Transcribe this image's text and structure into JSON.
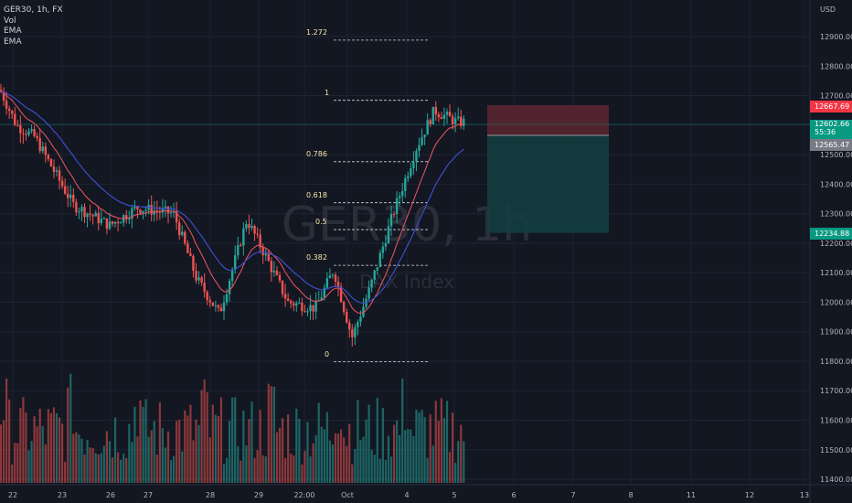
{
  "legend": {
    "symbol": "GER30, 1h, FX",
    "indicators": [
      "Vol",
      "EMA",
      "EMA"
    ]
  },
  "watermark": {
    "symbol": "GER30, 1h",
    "description": "DAX Index"
  },
  "price_axis": {
    "currency": "USD",
    "ticks": [
      "12900.00",
      "12800.00",
      "12700.00",
      "12600.00",
      "12500.00",
      "12400.00",
      "12300.00",
      "12200.00",
      "12100.00",
      "12000.00",
      "11900.00",
      "11800.00",
      "11700.00",
      "11600.00",
      "11500.00",
      "11400.00"
    ]
  },
  "price_labels": {
    "stop_loss": "12667.69",
    "current_price": "12602.66",
    "countdown": "55:36",
    "entry": "12565.47",
    "take_profit": "12234.88"
  },
  "time_axis": {
    "ticks": [
      "22",
      "23",
      "26",
      "27",
      "28",
      "29",
      "22:00",
      "Oct",
      "4",
      "5",
      "6",
      "7",
      "8",
      "11",
      "12",
      "13"
    ]
  },
  "fibonacci": {
    "levels": [
      {
        "label": "1.272",
        "price": 12888
      },
      {
        "label": "1",
        "price": 12684
      },
      {
        "label": "0.786",
        "price": 12476
      },
      {
        "label": "0.618",
        "price": 12337
      },
      {
        "label": "0.5",
        "price": 12246
      },
      {
        "label": "0.382",
        "price": 12125
      },
      {
        "label": "0",
        "price": 11798
      }
    ]
  },
  "position": {
    "stop_price": 12667.69,
    "entry_price": 12565.47,
    "target_price": 12234.88
  },
  "colors": {
    "background": "#131722",
    "up_candle": "#26a69a",
    "down_candle": "#ef5350",
    "ema_fast": "#e0515e",
    "ema_slow": "#3f51d6",
    "fib_label": "#f5e6a6",
    "stop_label": "#f23645",
    "current_label": "#089981",
    "entry_label": "#787b86",
    "target_label": "#089981"
  }
}
